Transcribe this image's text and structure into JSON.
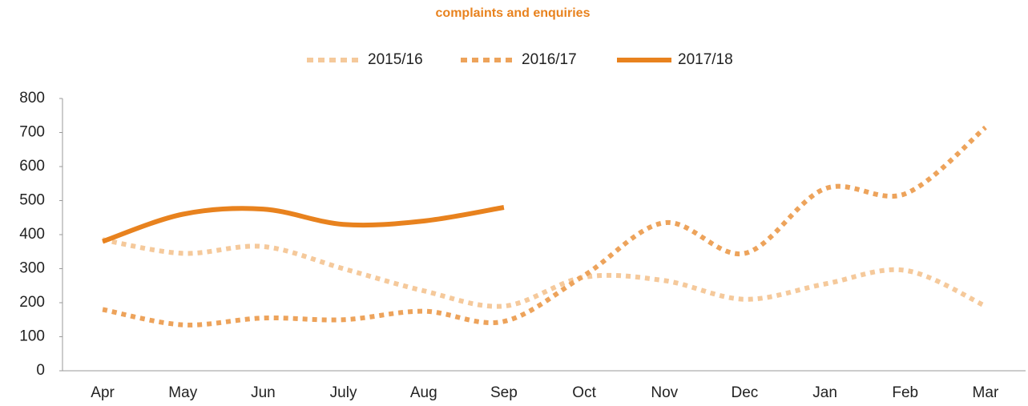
{
  "chart_data": {
    "type": "line",
    "title": "complaints and enquiries",
    "categories": [
      "Apr",
      "May",
      "Jun",
      "July",
      "Aug",
      "Sep",
      "Oct",
      "Nov",
      "Dec",
      "Jan",
      "Feb",
      "Mar"
    ],
    "series": [
      {
        "name": "2015/16",
        "color": "#f5c99b",
        "dash": true,
        "values": [
          385,
          345,
          365,
          300,
          235,
          190,
          275,
          265,
          210,
          255,
          295,
          190
        ]
      },
      {
        "name": "2016/17",
        "color": "#eda35b",
        "dash": true,
        "values": [
          180,
          135,
          155,
          150,
          175,
          145,
          280,
          435,
          345,
          535,
          520,
          715
        ]
      },
      {
        "name": "2017/18",
        "color": "#e8821e",
        "dash": false,
        "values": [
          380,
          460,
          475,
          430,
          440,
          480,
          null,
          null,
          null,
          null,
          null,
          null
        ]
      }
    ],
    "ylim": [
      0,
      800
    ],
    "yticks": [
      0,
      100,
      200,
      300,
      400,
      500,
      600,
      700,
      800
    ],
    "grid": false,
    "legend": "top"
  }
}
